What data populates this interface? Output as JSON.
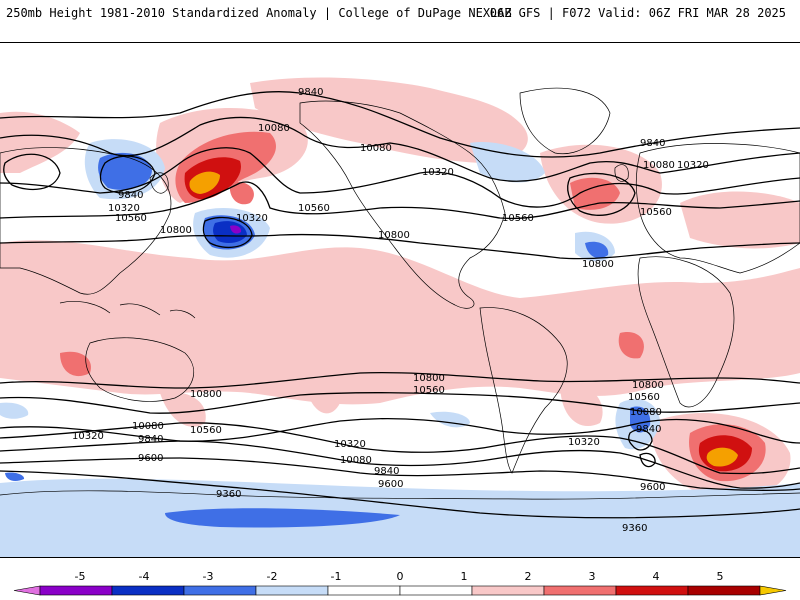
{
  "header": {
    "title_left": "250mb Height 1981-2010 Standardized Anomaly | College of DuPage NEXLAB",
    "title_right": "06Z GFS | F072 Valid: 06Z FRI MAR 28 2025"
  },
  "colors": {
    "neg5": "#e070e0",
    "neg4": "#8a00c8",
    "neg3": "#0a2fc4",
    "neg2": "#3f6fe6",
    "neg1": "#c6dcf7",
    "pos1": "#f8c8c8",
    "pos2": "#f07070",
    "pos3": "#d01010",
    "pos4": "#a80000",
    "pos5": "#f5a000",
    "pos6": "#f5c800",
    "contour": "#000000",
    "coast": "#000000"
  },
  "colorbar": {
    "ticks": [
      "-5",
      "-4",
      "-3",
      "-2",
      "-1",
      "0",
      "1",
      "2",
      "3",
      "4",
      "5"
    ]
  },
  "contour_labels": [
    "9840",
    "10080",
    "10080",
    "9840",
    "10320",
    "10560",
    "10800",
    "10320",
    "10560",
    "10800",
    "10320",
    "10560",
    "9840",
    "10080",
    "10320",
    "10560",
    "10800",
    "10800",
    "10560",
    "10800",
    "10560",
    "10320",
    "10080",
    "9840",
    "9600",
    "10320",
    "10080",
    "9840",
    "9600",
    "10320",
    "10800",
    "10560",
    "10080",
    "9840",
    "9600",
    "9360",
    "9360"
  ]
}
